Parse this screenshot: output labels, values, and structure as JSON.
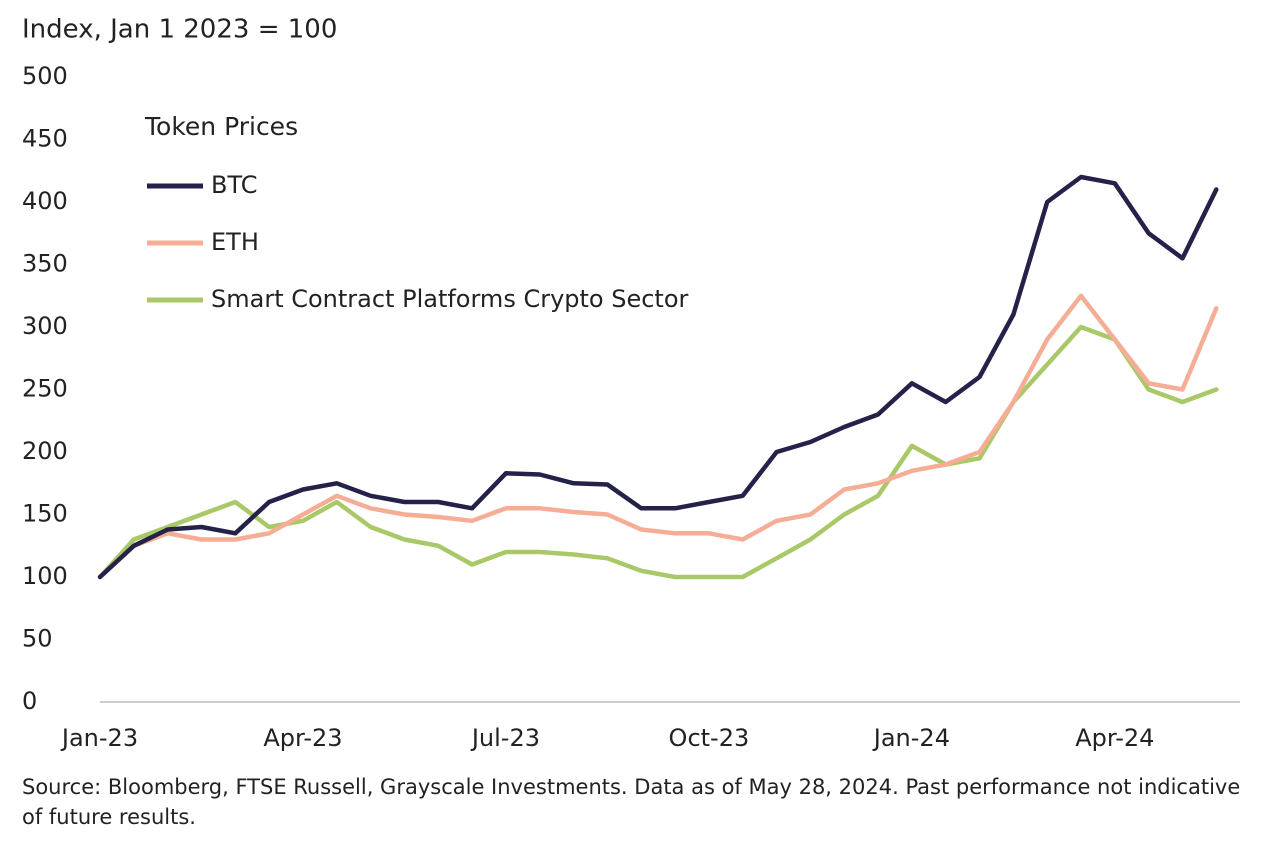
{
  "chart_data": {
    "type": "line",
    "y_label": "Index, Jan 1 2023 = 100",
    "legend_title": "Token Prices",
    "source": "Source: Bloomberg, FTSE Russell, Grayscale Investments. Data as of May 28, 2024. Past performance not indicative of future results.",
    "categories": [
      "Jan-23",
      null,
      null,
      null,
      null,
      null,
      "Apr-23",
      null,
      null,
      null,
      null,
      null,
      "Jul-23",
      null,
      null,
      null,
      null,
      null,
      "Oct-23",
      null,
      null,
      null,
      null,
      null,
      "Jan-24",
      null,
      null,
      null,
      null,
      null,
      "Apr-24",
      null,
      null,
      null
    ],
    "series": [
      {
        "name": "BTC",
        "color": "#25224a",
        "values": [
          100,
          125,
          138,
          140,
          135,
          160,
          170,
          175,
          165,
          160,
          160,
          155,
          183,
          182,
          175,
          174,
          155,
          155,
          160,
          165,
          200,
          208,
          220,
          230,
          255,
          240,
          260,
          310,
          400,
          420,
          415,
          375,
          355,
          410
        ]
      },
      {
        "name": "ETH",
        "color": "#f5ad96",
        "values": [
          100,
          125,
          135,
          130,
          130,
          135,
          150,
          165,
          155,
          150,
          148,
          145,
          155,
          155,
          152,
          150,
          138,
          135,
          135,
          130,
          145,
          150,
          170,
          175,
          185,
          190,
          200,
          240,
          290,
          325,
          290,
          255,
          250,
          315
        ]
      },
      {
        "name": "Smart Contract Platforms Crypto Sector",
        "color": "#a9c867",
        "values": [
          100,
          130,
          140,
          150,
          160,
          140,
          145,
          160,
          140,
          130,
          125,
          110,
          120,
          120,
          118,
          115,
          105,
          100,
          100,
          100,
          115,
          130,
          150,
          165,
          205,
          190,
          195,
          240,
          270,
          300,
          290,
          250,
          240,
          250
        ]
      }
    ],
    "ylim": [
      0,
      500
    ],
    "yticks": [
      0,
      50,
      100,
      150,
      200,
      250,
      300,
      350,
      400,
      450,
      500
    ],
    "grid": false,
    "legend": "upper left"
  }
}
